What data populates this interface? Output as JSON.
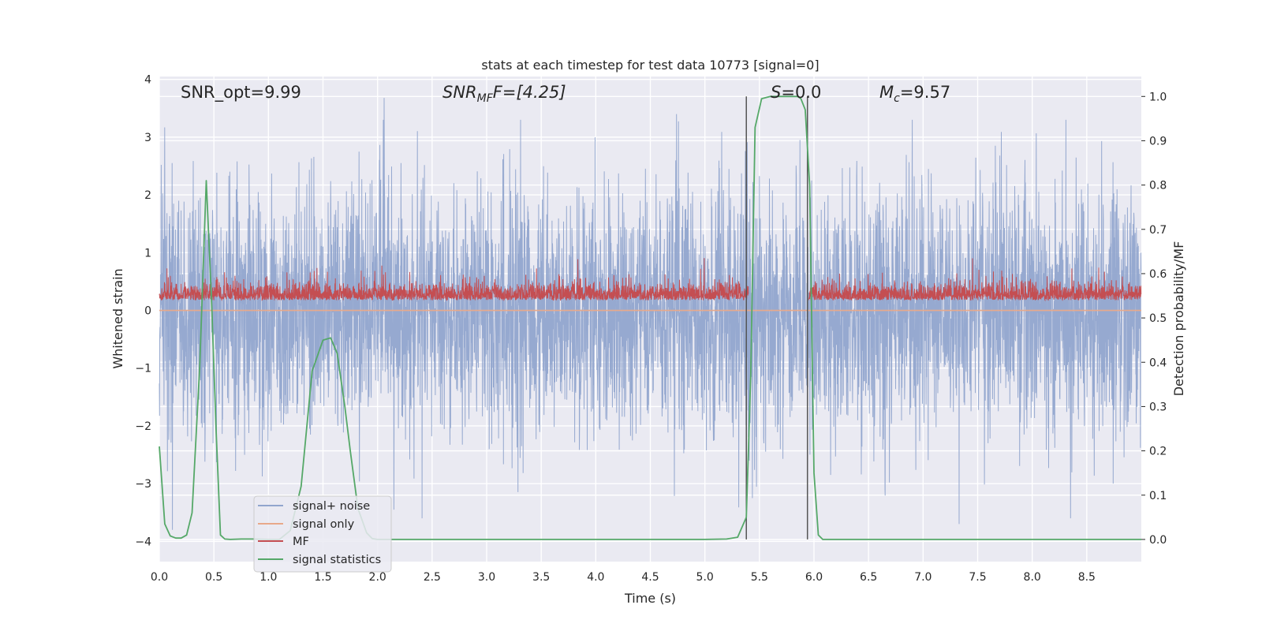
{
  "chart_data": {
    "type": "line",
    "title": "stats at each timestep for test data 10773 [signal=0]",
    "xlabel": "Time (s)",
    "ylabel_left": "Whitened strain",
    "ylabel_right": "Detection probability/MF",
    "xlim": [
      0.0,
      9.0
    ],
    "ylim_left": [
      -4.35,
      4.05
    ],
    "ylim_right": [
      -0.05,
      1.045
    ],
    "x_ticks": [
      0.0,
      0.5,
      1.0,
      1.5,
      2.0,
      2.5,
      3.0,
      3.5,
      4.0,
      4.5,
      5.0,
      5.5,
      6.0,
      6.5,
      7.0,
      7.5,
      8.0,
      8.5
    ],
    "x_tick_labels": [
      "0.0",
      "0.5",
      "1.0",
      "1.5",
      "2.0",
      "2.5",
      "3.0",
      "3.5",
      "4.0",
      "4.5",
      "5.0",
      "5.5",
      "6.0",
      "6.5",
      "7.0",
      "7.5",
      "8.0",
      "8.5"
    ],
    "y_ticks_left": [
      4,
      3,
      2,
      1,
      0,
      -1,
      -2,
      -3,
      -4
    ],
    "y_tick_labels_left": [
      "4",
      "3",
      "2",
      "1",
      "0",
      "−1",
      "−2",
      "−3",
      "−4"
    ],
    "y_ticks_right": [
      1.0,
      0.9,
      0.8,
      0.7,
      0.6,
      0.5,
      0.4,
      0.3,
      0.2,
      0.1,
      0.0
    ],
    "y_tick_labels_right": [
      "1.0",
      "0.9",
      "0.8",
      "0.7",
      "0.6",
      "0.5",
      "0.4",
      "0.3",
      "0.2",
      "0.1",
      "0.0"
    ],
    "annotations": {
      "snr_opt": "SNR_opt=9.99",
      "snr_mf_main": "SNR",
      "snr_mf_sub": "MF",
      "snr_mf_rest": "F=[4.25]",
      "s_main": "S",
      "s_rest": "=0.0",
      "mc_main": "M",
      "mc_sub": "c",
      "mc_rest": "=9.57"
    },
    "vlines_x": [
      5.38,
      5.94
    ],
    "vlines_y_range": [
      0.0,
      1.0
    ],
    "series": [
      {
        "name": "signal+ noise",
        "axis": "left",
        "color": "#91a5cd",
        "kind": "noise",
        "sample_rate_hz": 512,
        "std": 1.05,
        "notable_extremes": [
          {
            "x": 2.06,
            "y": 3.68
          },
          {
            "x": 7.33,
            "y": -3.7
          },
          {
            "x": 0.12,
            "y": -3.8
          },
          {
            "x": 2.15,
            "y": -3.45
          },
          {
            "x": 4.74,
            "y": 3.4
          }
        ]
      },
      {
        "name": "signal only",
        "axis": "left",
        "color": "#e8a98a",
        "values_constant": 0.0
      },
      {
        "name": "MF",
        "axis": "right",
        "color": "#c44e52",
        "kind": "noise",
        "baseline": 0.54,
        "typical_range": [
          0.52,
          0.6
        ],
        "peak": 0.64,
        "gap_x": [
          5.4,
          5.95
        ]
      },
      {
        "name": "signal statistics",
        "axis": "right",
        "color": "#55a868",
        "x": [
          0.0,
          0.05,
          0.1,
          0.15,
          0.2,
          0.25,
          0.3,
          0.37,
          0.43,
          0.48,
          0.52,
          0.56,
          0.6,
          0.65,
          0.75,
          0.85,
          1.0,
          1.1,
          1.2,
          1.3,
          1.4,
          1.5,
          1.57,
          1.63,
          1.7,
          1.75,
          1.82,
          1.9,
          1.95,
          2.0,
          2.5,
          3.0,
          3.5,
          4.0,
          4.5,
          5.0,
          5.2,
          5.3,
          5.38,
          5.42,
          5.46,
          5.52,
          5.6,
          5.7,
          5.8,
          5.85,
          5.88,
          5.92,
          5.96,
          6.0,
          6.04,
          6.08,
          6.3,
          7.0,
          8.0,
          9.0
        ],
        "y": [
          0.21,
          0.035,
          0.008,
          0.003,
          0.003,
          0.01,
          0.06,
          0.39,
          0.81,
          0.53,
          0.25,
          0.01,
          0.001,
          0.0,
          0.001,
          0.001,
          0.0,
          0.0,
          0.02,
          0.12,
          0.38,
          0.45,
          0.455,
          0.42,
          0.3,
          0.2,
          0.07,
          0.015,
          0.002,
          0.0,
          0.0,
          0.0,
          0.0,
          0.0,
          0.0,
          0.0,
          0.001,
          0.005,
          0.05,
          0.37,
          0.93,
          0.995,
          1.0,
          1.0,
          1.0,
          1.0,
          0.995,
          0.97,
          0.8,
          0.15,
          0.01,
          0.0,
          0.0,
          0.0,
          0.0,
          0.0
        ]
      }
    ],
    "legend": {
      "placement": "lower-left",
      "entries": [
        {
          "label": "signal+ noise",
          "color": "#91a5cd"
        },
        {
          "label": "signal only",
          "color": "#e8a98a"
        },
        {
          "label": "MF",
          "color": "#c44e52"
        },
        {
          "label": "signal statistics",
          "color": "#55a868"
        }
      ]
    },
    "colors": {
      "axes_background": "#eaeaf2",
      "grid": "#ffffff",
      "vline": "#555555",
      "text": "#262626"
    }
  }
}
